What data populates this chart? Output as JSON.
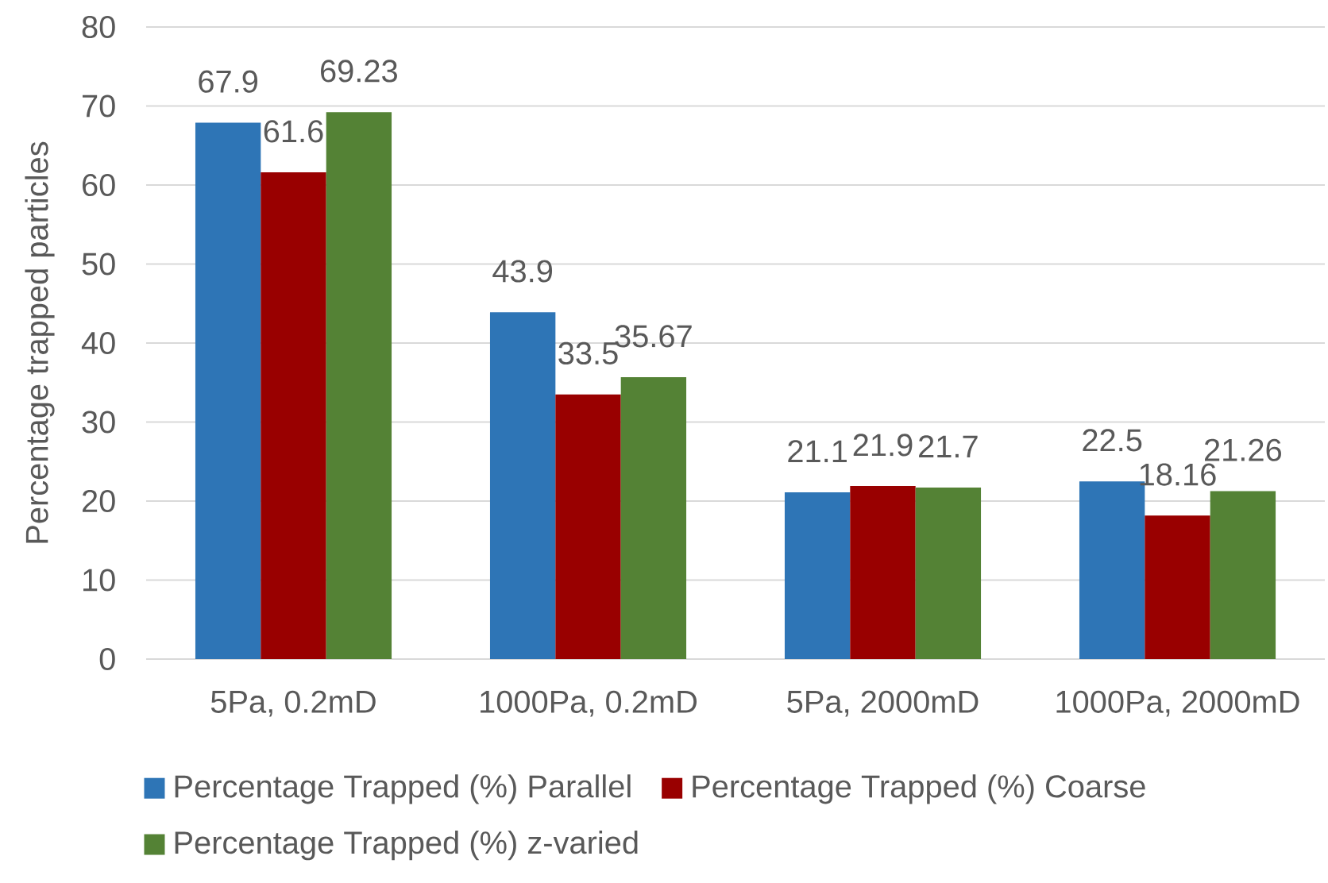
{
  "chart_data": {
    "type": "bar",
    "ylabel": "Percentage trapped particles",
    "categories": [
      "5Pa, 0.2mD",
      "1000Pa, 0.2mD",
      "5Pa, 2000mD",
      "1000Pa, 2000mD"
    ],
    "series": [
      {
        "name": "Percentage Trapped (%) Parallel",
        "color": "#2e75b6",
        "values": [
          67.9,
          43.9,
          21.1,
          22.5
        ]
      },
      {
        "name": "Percentage Trapped (%) Coarse",
        "color": "#990000",
        "values": [
          61.6,
          33.5,
          21.9,
          18.16
        ]
      },
      {
        "name": "Percentage Trapped (%) z-varied",
        "color": "#548235",
        "values": [
          69.23,
          35.67,
          21.7,
          21.26
        ]
      }
    ],
    "ylim": [
      0,
      80
    ],
    "yticks": [
      0,
      10,
      20,
      30,
      40,
      50,
      60,
      70,
      80
    ],
    "grid": "y",
    "legend": "bottom",
    "data_labels": true
  }
}
